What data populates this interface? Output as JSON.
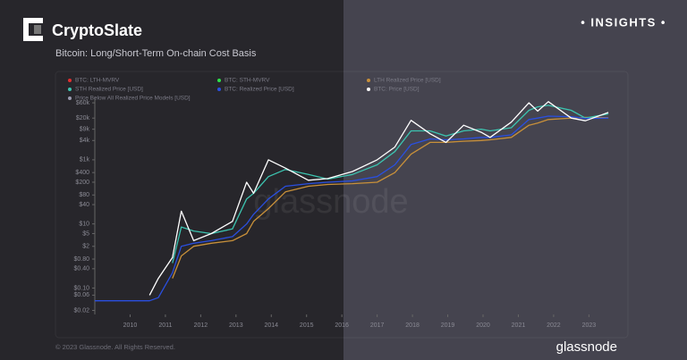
{
  "brand": "CryptoSlate",
  "badge": "• INSIGHTS •",
  "copyright": "© 2023 Glassnode. All Rights Reserved.",
  "watermark": "glassnode",
  "footer_logo": "glassnode",
  "chart_data": {
    "type": "line",
    "title": "Bitcoin: Long/Short-Term On-chain Cost Basis",
    "log_y": true,
    "x": [
      2009.0,
      2010.55,
      2010.8,
      2011.2,
      2011.45,
      2011.8,
      2012.3,
      2012.9,
      2013.3,
      2013.5,
      2013.92,
      2014.4,
      2015.05,
      2015.6,
      2016.3,
      2017.0,
      2017.5,
      2017.96,
      2018.5,
      2018.95,
      2019.45,
      2019.95,
      2020.2,
      2020.8,
      2021.3,
      2021.55,
      2021.85,
      2022.5,
      2022.9,
      2023.55
    ],
    "series": [
      {
        "name": "BTC: LTH-MVRV",
        "color": "#e03030",
        "values": [
          null,
          null,
          null,
          null,
          null,
          null,
          null,
          null,
          null,
          null,
          null,
          null,
          null,
          null,
          null,
          null,
          null,
          null,
          null,
          null,
          null,
          null,
          null,
          null,
          null,
          null,
          null,
          null,
          null,
          null
        ]
      },
      {
        "name": "BTC: STH-MVRV",
        "color": "#2ee04a",
        "values": [
          null,
          null,
          null,
          null,
          null,
          null,
          null,
          null,
          null,
          null,
          null,
          null,
          null,
          null,
          null,
          null,
          null,
          null,
          null,
          null,
          null,
          null,
          null,
          null,
          null,
          null,
          null,
          null,
          null,
          null
        ]
      },
      {
        "name": "LTH Realized Price [USD]",
        "color": "#c8903a",
        "values": [
          null,
          null,
          null,
          0.2,
          1,
          2,
          2.5,
          3,
          5,
          12,
          30,
          100,
          150,
          170,
          180,
          200,
          400,
          1500,
          3500,
          3500,
          3800,
          4000,
          4200,
          5000,
          12000,
          14000,
          18000,
          20000,
          21000,
          20500
        ]
      },
      {
        "name": "STH Realized Price [USD]",
        "color": "#3cc4b0",
        "values": [
          null,
          null,
          null,
          0.6,
          8,
          6,
          5,
          7,
          60,
          90,
          300,
          500,
          350,
          250,
          350,
          700,
          1800,
          8000,
          8000,
          5500,
          8000,
          9000,
          8000,
          10000,
          35000,
          45000,
          50000,
          35000,
          20000,
          27000
        ]
      },
      {
        "name": "BTC: Realized Price [USD]",
        "color": "#2a4fe0",
        "values": [
          0.04,
          0.04,
          0.05,
          0.3,
          2,
          2.5,
          3,
          4,
          10,
          20,
          60,
          150,
          180,
          200,
          220,
          300,
          700,
          3000,
          4500,
          4200,
          4500,
          5000,
          5000,
          6000,
          18000,
          20000,
          23000,
          22000,
          19500,
          20000
        ]
      },
      {
        "name": "BTC: Price [USD]",
        "color": "#ffffff",
        "values": [
          null,
          0.06,
          0.2,
          0.9,
          25,
          3,
          5,
          12,
          200,
          90,
          1000,
          550,
          230,
          260,
          430,
          1000,
          2500,
          17000,
          6500,
          3500,
          12000,
          7200,
          5000,
          15000,
          60000,
          33000,
          65000,
          20000,
          16500,
          30000
        ]
      },
      {
        "name": "Price Below All Realized Price Models [USD]",
        "color": "#9a9ab0",
        "values": [
          null,
          null,
          null,
          null,
          null,
          null,
          null,
          null,
          null,
          null,
          null,
          null,
          null,
          null,
          null,
          null,
          null,
          null,
          null,
          null,
          null,
          null,
          null,
          null,
          null,
          null,
          null,
          null,
          null,
          null
        ]
      }
    ],
    "xlim": [
      2009,
      2023.65
    ],
    "xticks": [
      2010,
      2011,
      2012,
      2013,
      2014,
      2015,
      2016,
      2017,
      2018,
      2019,
      2020,
      2021,
      2022,
      2023
    ],
    "ylim": [
      0.015,
      300000
    ],
    "yticks": [
      {
        "value": 0.02,
        "label": "$0.02"
      },
      {
        "value": 0.06,
        "label": "$0.06"
      },
      {
        "value": 0.1,
        "label": "$0.10"
      },
      {
        "value": 0.4,
        "label": "$0.40"
      },
      {
        "value": 0.8,
        "label": "$0.80"
      },
      {
        "value": 2,
        "label": "$2"
      },
      {
        "value": 5,
        "label": "$5"
      },
      {
        "value": 10,
        "label": "$10"
      },
      {
        "value": 40,
        "label": "$40"
      },
      {
        "value": 80,
        "label": "$80"
      },
      {
        "value": 200,
        "label": "$200"
      },
      {
        "value": 400,
        "label": "$400"
      },
      {
        "value": 1000,
        "label": "$1k"
      },
      {
        "value": 4000,
        "label": "$4k"
      },
      {
        "value": 9000,
        "label": "$9k"
      },
      {
        "value": 20000,
        "label": "$20k"
      },
      {
        "value": 60000,
        "label": "$60k"
      }
    ]
  }
}
